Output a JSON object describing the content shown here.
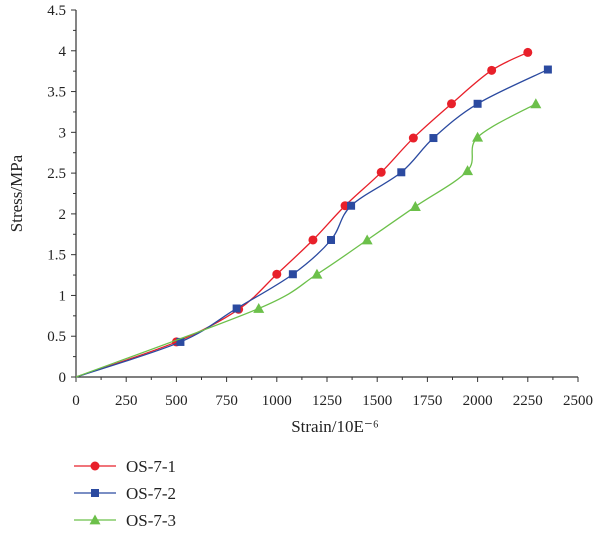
{
  "chart_data": {
    "type": "line",
    "title": "",
    "xlabel": "Strain/10E⁻⁶",
    "ylabel": "Stress/MPa",
    "xlim": [
      0,
      2500
    ],
    "ylim": [
      0,
      4.5
    ],
    "x_ticks": [
      "0",
      "250",
      "500",
      "750",
      "1000",
      "1250",
      "1500",
      "1750",
      "2000",
      "2250",
      "2500"
    ],
    "y_ticks": [
      "0",
      "0.5",
      "1",
      "1.5",
      "2",
      "2.5",
      "3",
      "3.5",
      "4",
      "4.5"
    ],
    "grid": false,
    "legend_position": "bottom-left",
    "series": [
      {
        "name": "OS-7-1",
        "color": "#e8202a",
        "marker": "circle",
        "x": [
          0,
          500,
          810,
          1000,
          1180,
          1340,
          1520,
          1680,
          1870,
          2070,
          2250
        ],
        "y": [
          0,
          0.43,
          0.83,
          1.26,
          1.68,
          2.1,
          2.51,
          2.93,
          3.35,
          3.76,
          3.98
        ]
      },
      {
        "name": "OS-7-2",
        "color": "#2b4aa0",
        "marker": "square",
        "x": [
          0,
          520,
          800,
          1080,
          1270,
          1370,
          1620,
          1780,
          2000,
          2350
        ],
        "y": [
          0,
          0.43,
          0.84,
          1.26,
          1.68,
          2.1,
          2.51,
          2.93,
          3.35,
          3.77
        ]
      },
      {
        "name": "OS-7-3",
        "color": "#6cc04a",
        "marker": "triangle",
        "x": [
          0,
          910,
          1200,
          1450,
          1690,
          1950,
          2000,
          2290
        ],
        "y": [
          0,
          0.84,
          1.26,
          1.68,
          2.09,
          2.53,
          2.94,
          3.35
        ]
      }
    ]
  }
}
